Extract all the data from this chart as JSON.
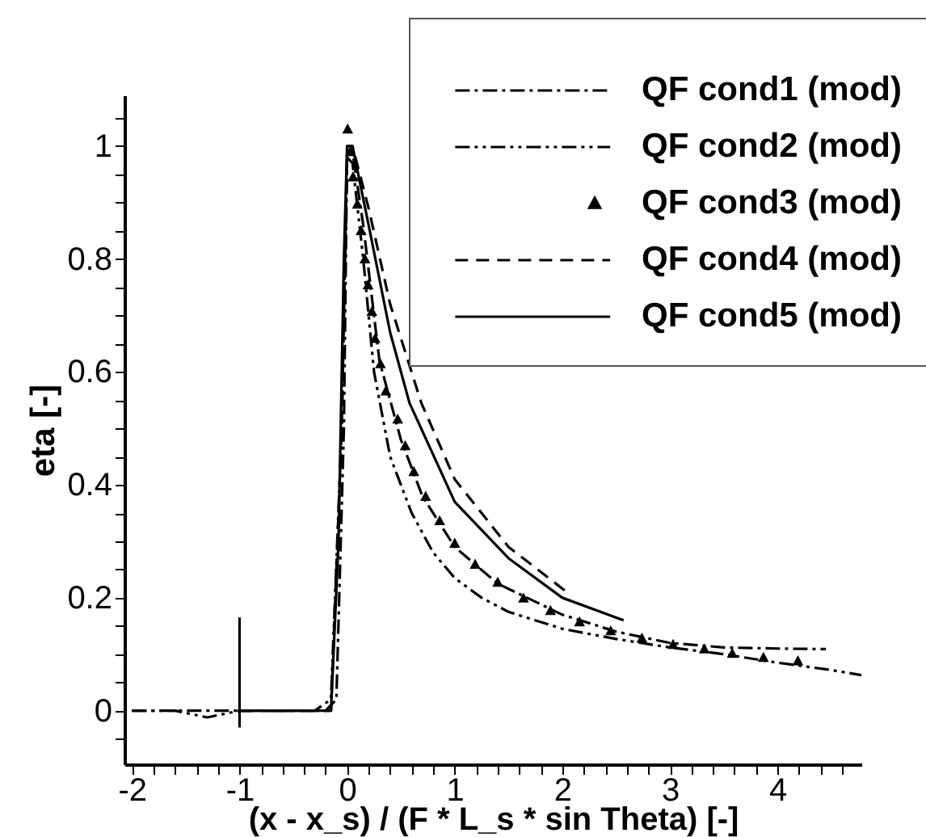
{
  "chart_data": {
    "type": "line",
    "xlabel": "(x - x_s) / (F * L_s * sin Theta) [-]",
    "ylabel": "eta [-]",
    "xlim": [
      -2.07,
      4.78
    ],
    "ylim": [
      -0.095,
      1.09
    ],
    "xticks": [
      -2,
      {
        "value": -1.8,
        "label": null
      },
      {
        "value": -1.6,
        "label": null
      },
      {
        "value": -1.4,
        "label": null
      },
      {
        "value": -1.2,
        "label": null
      },
      -1,
      {
        "value": -0.8,
        "label": null
      },
      {
        "value": -0.6,
        "label": null
      },
      {
        "value": -0.4,
        "label": null
      },
      {
        "value": -0.2,
        "label": null
      },
      0,
      {
        "value": 0.2,
        "label": null
      },
      {
        "value": 0.4,
        "label": null
      },
      {
        "value": 0.6,
        "label": null
      },
      {
        "value": 0.8,
        "label": null
      },
      1,
      {
        "value": 1.2,
        "label": null
      },
      {
        "value": 1.4,
        "label": null
      },
      {
        "value": 1.6,
        "label": null
      },
      {
        "value": 1.8,
        "label": null
      },
      2,
      {
        "value": 2.2,
        "label": null
      },
      {
        "value": 2.4,
        "label": null
      },
      {
        "value": 2.6,
        "label": null
      },
      {
        "value": 2.8,
        "label": null
      },
      3,
      {
        "value": 3.2,
        "label": null
      },
      {
        "value": 3.4,
        "label": null
      },
      {
        "value": 3.6,
        "label": null
      },
      {
        "value": 3.8,
        "label": null
      },
      4,
      {
        "value": 4.2,
        "label": null
      },
      {
        "value": 4.4,
        "label": null
      },
      {
        "value": 4.6,
        "label": null
      }
    ],
    "yticks": [
      {
        "value": -0.05,
        "label": null
      },
      0,
      {
        "value": 0.05,
        "label": null
      },
      {
        "value": 0.1,
        "label": null
      },
      {
        "value": 0.15,
        "label": null
      },
      0.2,
      {
        "value": 0.25,
        "label": null
      },
      {
        "value": 0.3,
        "label": null
      },
      {
        "value": 0.35,
        "label": null
      },
      0.4,
      {
        "value": 0.45,
        "label": null
      },
      {
        "value": 0.5,
        "label": null
      },
      {
        "value": 0.55,
        "label": null
      },
      0.6,
      {
        "value": 0.65,
        "label": null
      },
      {
        "value": 0.7,
        "label": null
      },
      {
        "value": 0.75,
        "label": null
      },
      0.8,
      {
        "value": 0.85,
        "label": null
      },
      {
        "value": 0.9,
        "label": null
      },
      {
        "value": 0.95,
        "label": null
      },
      1,
      {
        "value": 1.05,
        "label": null
      }
    ],
    "grid": false,
    "legend": "top right",
    "series": [
      {
        "name": "QF cond1 (mod)",
        "type": "line",
        "line_style": "dashdot",
        "color": "#000000",
        "x": [
          -2,
          -1,
          -0.2,
          -0.1,
          -0.03,
          0,
          0.05,
          0.15,
          0.3,
          0.5,
          0.7,
          1,
          1.4,
          2,
          2.5,
          3,
          3.5,
          4,
          4.45
        ],
        "values": [
          0,
          0,
          0,
          0.02,
          0.5,
          0.99,
          0.99,
          0.86,
          0.62,
          0.48,
          0.38,
          0.29,
          0.225,
          0.17,
          0.14,
          0.12,
          0.112,
          0.11,
          0.109
        ]
      },
      {
        "name": "QF cond2 (mod)",
        "type": "line",
        "line_style": "dashdotdot",
        "color": "#000000",
        "x": [
          -2,
          -1.6,
          -1.3,
          -1,
          -0.3,
          -0.15,
          -0.05,
          0,
          0.05,
          0.15,
          0.25,
          0.4,
          0.6,
          0.8,
          1,
          1.25,
          1.5,
          2,
          2.5,
          3,
          3.5,
          4,
          4.5,
          4.78
        ],
        "values": [
          0,
          0,
          -0.012,
          0,
          0,
          0.02,
          0.5,
          0.98,
          0.97,
          0.8,
          0.6,
          0.45,
          0.35,
          0.28,
          0.235,
          0.2,
          0.175,
          0.145,
          0.127,
          0.112,
          0.1,
          0.085,
          0.072,
          0.063
        ]
      },
      {
        "name": "QF cond3 (mod)",
        "type": "scatter",
        "marker": "triangle",
        "color": "#000000",
        "x": [
          0.005,
          0.03,
          0.055,
          0.095,
          0.13,
          0.165,
          0.195,
          0.23,
          0.26,
          0.31,
          0.36,
          0.47,
          0.54,
          0.62,
          0.73,
          0.86,
          1.0,
          1.19,
          1.4,
          1.64,
          1.89,
          2.16,
          2.45,
          2.74,
          3.03,
          3.32,
          3.58,
          3.87,
          4.19
        ],
        "values": [
          1.03,
          0.99,
          0.945,
          0.897,
          0.85,
          0.8,
          0.754,
          0.707,
          0.659,
          0.614,
          0.566,
          0.516,
          0.469,
          0.423,
          0.379,
          0.336,
          0.296,
          0.259,
          0.227,
          0.199,
          0.177,
          0.157,
          0.141,
          0.128,
          0.117,
          0.109,
          0.101,
          0.094,
          0.088
        ]
      },
      {
        "name": "QF cond4 (mod)",
        "type": "line",
        "line_style": "dashed",
        "color": "#000000",
        "x": [
          -1,
          -0.15,
          -0.05,
          0,
          0.05,
          0.2,
          0.4,
          0.69,
          1,
          1.5,
          2.07
        ],
        "values": [
          0,
          0,
          0.5,
          1.0,
          1.0,
          0.89,
          0.72,
          0.545,
          0.41,
          0.29,
          0.206
        ]
      },
      {
        "name": "QF cond5 (mod)",
        "type": "line",
        "line_style": "solid",
        "color": "#000000",
        "x": [
          -1,
          -0.15,
          -0.08,
          -0.03,
          0,
          0.05,
          0.2,
          0.4,
          0.58,
          1,
          1.5,
          2,
          2.57
        ],
        "values": [
          0,
          0,
          0.3,
          0.8,
          1.0,
          1.0,
          0.86,
          0.67,
          0.545,
          0.37,
          0.27,
          0.2,
          0.16
        ]
      },
      {
        "type": "line",
        "line_style": "solid",
        "color": "#000000",
        "x": [
          -1,
          -1
        ],
        "values": [
          -0.03,
          0.165
        ]
      }
    ]
  }
}
